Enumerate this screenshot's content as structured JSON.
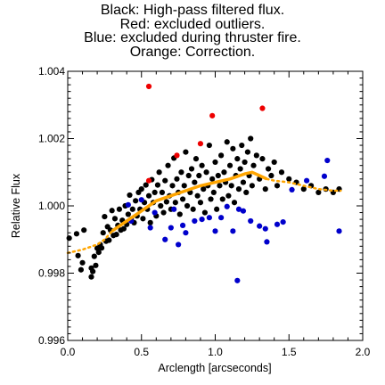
{
  "chart_data": {
    "type": "scatter",
    "title_lines": [
      "Black: High-pass filtered flux.",
      "Red: excluded outliers.",
      "Blue: excluded during thruster fire.",
      "Orange: Correction."
    ],
    "xlabel": "Arclength [arcseconds]",
    "ylabel": "Relative Flux",
    "xlim": [
      0.0,
      2.0
    ],
    "ylim": [
      0.996,
      1.004
    ],
    "xticks": [
      "0.0",
      "0.5",
      "1.0",
      "1.5",
      "2.0"
    ],
    "yticks": [
      "0.996",
      "0.998",
      "1.000",
      "1.002",
      "1.004"
    ],
    "grid": false,
    "colors": {
      "black": "#000000",
      "red": "#ee0000",
      "blue": "#0000cc",
      "orange": "#ffa500"
    },
    "series": [
      {
        "name": "Black: High-pass filtered flux.",
        "color": "#000000",
        "points": [
          [
            0.01,
            0.99904
          ],
          [
            0.06,
            0.99917
          ],
          [
            0.07,
            0.99852
          ],
          [
            0.09,
            0.9981
          ],
          [
            0.1,
            0.99831
          ],
          [
            0.11,
            0.99928
          ],
          [
            0.16,
            0.99789
          ],
          [
            0.16,
            0.99815
          ],
          [
            0.17,
            0.99805
          ],
          [
            0.18,
            0.9985
          ],
          [
            0.19,
            0.99823
          ],
          [
            0.2,
            0.99874
          ],
          [
            0.21,
            0.99862
          ],
          [
            0.22,
            0.99885
          ],
          [
            0.23,
            0.99875
          ],
          [
            0.24,
            0.9992
          ],
          [
            0.25,
            0.99968
          ],
          [
            0.26,
            0.99895
          ],
          [
            0.27,
            0.99938
          ],
          [
            0.28,
            0.99898
          ],
          [
            0.29,
            0.99928
          ],
          [
            0.3,
            0.99986
          ],
          [
            0.31,
            0.99912
          ],
          [
            0.32,
            0.99962
          ],
          [
            0.33,
            0.99915
          ],
          [
            0.34,
            0.99942
          ],
          [
            0.35,
            0.9999
          ],
          [
            0.36,
            0.99928
          ],
          [
            0.37,
            0.99957
          ],
          [
            0.38,
            0.99932
          ],
          [
            0.39,
            1.0
          ],
          [
            0.4,
            0.99945
          ],
          [
            0.41,
            0.99975
          ],
          [
            0.42,
            1.00032
          ],
          [
            0.43,
            0.9996
          ],
          [
            0.44,
            0.9999
          ],
          [
            0.45,
            0.9995
          ],
          [
            0.46,
            1.00015
          ],
          [
            0.47,
            0.9997
          ],
          [
            0.48,
            1.0004
          ],
          [
            0.49,
            0.9999
          ],
          [
            0.5,
            1.0005
          ],
          [
            0.51,
            0.99962
          ],
          [
            0.52,
            1.0001
          ],
          [
            0.53,
            1.00062
          ],
          [
            0.54,
            0.9999
          ],
          [
            0.55,
            1.0003
          ],
          [
            0.56,
            0.9995
          ],
          [
            0.57,
            1.00078
          ],
          [
            0.58,
            1.0001
          ],
          [
            0.59,
            1.0004
          ],
          [
            0.6,
            0.9997
          ],
          [
            0.61,
            1.00062
          ],
          [
            0.62,
            1.001
          ],
          [
            0.63,
            1.0
          ],
          [
            0.64,
            1.0004
          ],
          [
            0.65,
            0.9998
          ],
          [
            0.66,
            1.00075
          ],
          [
            0.67,
            1.00012
          ],
          [
            0.68,
            1.0012
          ],
          [
            0.69,
            1.0003
          ],
          [
            0.7,
            0.9999
          ],
          [
            0.71,
            1.0006
          ],
          [
            0.72,
            1.00142
          ],
          [
            0.73,
            1.0001
          ],
          [
            0.74,
            1.0008
          ],
          [
            0.75,
            1.0004
          ],
          [
            0.76,
            0.99975
          ],
          [
            0.77,
            1.001
          ],
          [
            0.78,
            1.0002
          ],
          [
            0.79,
            1.0006
          ],
          [
            0.8,
            1.0016
          ],
          [
            0.81,
            1.0
          ],
          [
            0.82,
            1.0009
          ],
          [
            0.83,
            1.0004
          ],
          [
            0.84,
            1.0011
          ],
          [
            0.85,
            0.9999
          ],
          [
            0.86,
            1.0007
          ],
          [
            0.87,
            1.0014
          ],
          [
            0.88,
            1.0003
          ],
          [
            0.89,
            1.0009
          ],
          [
            0.9,
            1.0001
          ],
          [
            0.91,
            1.0012
          ],
          [
            0.92,
            1.0005
          ],
          [
            0.93,
            0.9998
          ],
          [
            0.94,
            1.001
          ],
          [
            0.95,
            1.0006
          ],
          [
            0.96,
            1.0018
          ],
          [
            0.97,
            1.0002
          ],
          [
            0.98,
            1.0008
          ],
          [
            0.99,
            1.0004
          ],
          [
            1.0,
            1.0013
          ],
          [
            1.01,
            0.9999
          ],
          [
            1.02,
            1.0009
          ],
          [
            1.03,
            1.0006
          ],
          [
            1.04,
            1.0015
          ],
          [
            1.05,
            1.0002
          ],
          [
            1.06,
            1.001
          ],
          [
            1.07,
            1.0007
          ],
          [
            1.08,
            1.0019
          ],
          [
            1.09,
            1.0003
          ],
          [
            1.1,
            1.0012
          ],
          [
            1.11,
            1.0006
          ],
          [
            1.12,
            1.0017
          ],
          [
            1.13,
            1.0001
          ],
          [
            1.14,
            1.0009
          ],
          [
            1.15,
            1.0014
          ],
          [
            1.16,
            1.0005
          ],
          [
            1.17,
            1.0011
          ],
          [
            1.18,
            1.0018
          ],
          [
            1.19,
            1.0007
          ],
          [
            1.2,
            1.0013
          ],
          [
            1.21,
            1.0004
          ],
          [
            1.22,
            1.0016
          ],
          [
            1.23,
            1.0009
          ],
          [
            1.24,
            1.002
          ],
          [
            1.25,
            1.0006
          ],
          [
            1.26,
            1.0012
          ],
          [
            1.28,
            1.0015
          ],
          [
            1.3,
            1.0008
          ],
          [
            1.32,
            1.0014
          ],
          [
            1.34,
            1.0005
          ],
          [
            1.36,
            1.0011
          ],
          [
            1.38,
            1.0009
          ],
          [
            1.4,
            1.0013
          ],
          [
            1.42,
            1.0006
          ],
          [
            1.45,
            1.001
          ],
          [
            1.5,
            1.0008
          ],
          [
            1.55,
            1.0007
          ],
          [
            1.6,
            1.0005
          ],
          [
            1.65,
            1.0006
          ],
          [
            1.7,
            1.0004
          ],
          [
            1.75,
            1.0005
          ],
          [
            1.8,
            1.0004
          ],
          [
            1.84,
            1.0005
          ]
        ]
      },
      {
        "name": "Red: excluded outliers.",
        "color": "#ee0000",
        "points": [
          [
            0.55,
            1.00355
          ],
          [
            0.98,
            1.00268
          ],
          [
            1.32,
            1.0029
          ],
          [
            0.9,
            1.00185
          ],
          [
            0.74,
            1.0015
          ],
          [
            0.55,
            1.00075
          ]
        ]
      },
      {
        "name": "Blue: excluded during thruster fire.",
        "color": "#0000cc",
        "points": [
          [
            0.41,
            1.00003
          ],
          [
            0.43,
            0.99955
          ],
          [
            0.5,
            1.00018
          ],
          [
            0.56,
            0.99935
          ],
          [
            0.59,
            0.9998
          ],
          [
            0.66,
            0.999
          ],
          [
            0.7,
            0.99935
          ],
          [
            0.72,
            0.9999
          ],
          [
            0.75,
            0.99885
          ],
          [
            0.78,
            0.99942
          ],
          [
            0.8,
            0.9992
          ],
          [
            0.86,
            0.99955
          ],
          [
            0.91,
            0.9996
          ],
          [
            0.96,
            0.99965
          ],
          [
            1.0,
            0.99925
          ],
          [
            1.04,
            0.99965
          ],
          [
            1.08,
            0.99998
          ],
          [
            1.12,
            0.99925
          ],
          [
            1.15,
            0.99778
          ],
          [
            1.16,
            0.9999
          ],
          [
            1.19,
            0.99985
          ],
          [
            1.24,
            0.99955
          ],
          [
            1.3,
            0.9994
          ],
          [
            1.34,
            0.99932
          ],
          [
            1.35,
            0.99893
          ],
          [
            1.42,
            0.99945
          ],
          [
            1.46,
            0.99952
          ],
          [
            1.52,
            1.00048
          ],
          [
            1.62,
            1.00075
          ],
          [
            1.74,
            1.00088
          ],
          [
            1.76,
            1.00135
          ],
          [
            1.84,
            0.99925
          ]
        ]
      },
      {
        "name": "Orange: Correction.",
        "color": "#ffa500",
        "points": [
          [
            0.0,
            0.9986
          ],
          [
            0.1,
            0.9987
          ],
          [
            0.2,
            0.99885
          ],
          [
            0.25,
            0.999
          ],
          [
            0.3,
            0.99925
          ],
          [
            0.4,
            0.99955
          ],
          [
            0.5,
            0.99985
          ],
          [
            0.6,
            1.00015
          ],
          [
            0.7,
            1.0003
          ],
          [
            0.8,
            1.00045
          ],
          [
            0.9,
            1.0006
          ],
          [
            1.0,
            1.0007
          ],
          [
            1.1,
            1.0008
          ],
          [
            1.2,
            1.00095
          ],
          [
            1.25,
            1.001
          ],
          [
            1.3,
            1.0009
          ],
          [
            1.35,
            1.0008
          ],
          [
            1.4,
            1.00075
          ],
          [
            1.5,
            1.0007
          ],
          [
            1.6,
            1.0006
          ],
          [
            1.7,
            1.0005
          ],
          [
            1.8,
            1.00045
          ],
          [
            1.85,
            1.00045
          ]
        ]
      }
    ]
  }
}
